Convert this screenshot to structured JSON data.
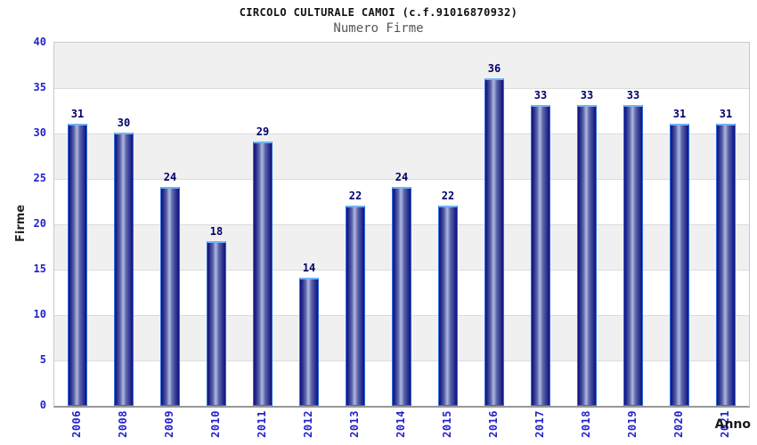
{
  "chart_data": {
    "type": "bar",
    "title": "CIRCOLO CULTURALE CAMOI (c.f.91016870932)",
    "subtitle": "Numero Firme",
    "categories": [
      "2006",
      "2008",
      "2009",
      "2010",
      "2011",
      "2012",
      "2013",
      "2014",
      "2015",
      "2016",
      "2017",
      "2018",
      "2019",
      "2020",
      "2021"
    ],
    "values": [
      31,
      30,
      24,
      18,
      29,
      14,
      22,
      24,
      22,
      36,
      33,
      33,
      33,
      31,
      31
    ],
    "xlabel": "Anno",
    "ylabel": "Firme",
    "ylim": [
      0,
      40
    ],
    "ytick_step": 5,
    "yticks": [
      0,
      5,
      10,
      15,
      20,
      25,
      30,
      35,
      40
    ],
    "grid": "alternating-horizontal-bands",
    "legend": "none",
    "value_labels": "above-bars",
    "colors": {
      "bar_edge": "#10107a",
      "bar_mid": "#b0b8dc",
      "bar_border_top": "#74b2f4",
      "bar_border_side": "#2e6ee0",
      "tick_label": "#2323cb",
      "value_label": "#00006a",
      "band_gray": "#f0f0f0",
      "band_white": "#ffffff",
      "plot_border": "#c9c9c9",
      "axis_line": "#989898",
      "title": "#111111",
      "subtitle": "#565656",
      "axis_title": "#1a1a1a"
    }
  }
}
